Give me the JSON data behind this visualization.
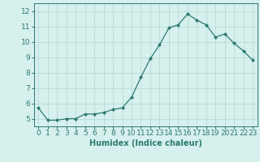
{
  "x": [
    0,
    1,
    2,
    3,
    4,
    5,
    6,
    7,
    8,
    9,
    10,
    11,
    12,
    13,
    14,
    15,
    16,
    17,
    18,
    19,
    20,
    21,
    22,
    23
  ],
  "y": [
    5.7,
    4.9,
    4.9,
    5.0,
    5.0,
    5.3,
    5.3,
    5.4,
    5.6,
    5.7,
    6.4,
    7.7,
    8.9,
    9.8,
    10.9,
    11.1,
    11.8,
    11.4,
    11.1,
    10.3,
    10.5,
    9.9,
    9.4,
    8.8
  ],
  "line_color": "#2d7a6e",
  "marker_color": "#2d7a6e",
  "bg_color": "#d6f0ed",
  "grid_color": "#b0d8d4",
  "xlabel": "Humidex (Indice chaleur)",
  "xlabel_fontsize": 7,
  "tick_fontsize": 6.5,
  "ylim": [
    4.5,
    12.5
  ],
  "xlim": [
    -0.5,
    23.5
  ],
  "yticks": [
    5,
    6,
    7,
    8,
    9,
    10,
    11,
    12
  ],
  "xticks": [
    0,
    1,
    2,
    3,
    4,
    5,
    6,
    7,
    8,
    9,
    10,
    11,
    12,
    13,
    14,
    15,
    16,
    17,
    18,
    19,
    20,
    21,
    22,
    23
  ]
}
